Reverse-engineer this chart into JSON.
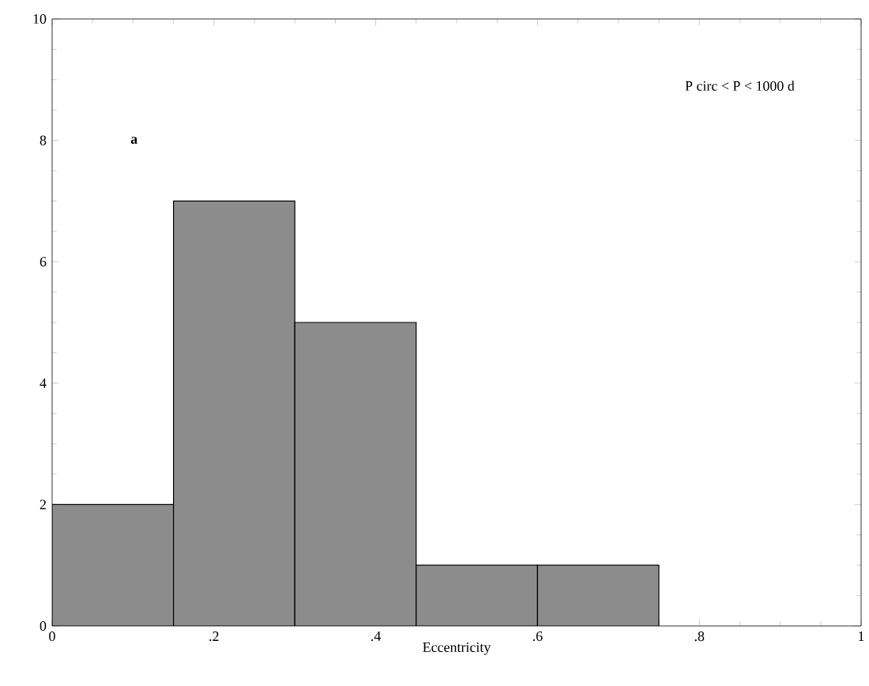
{
  "chart_data": {
    "type": "histogram",
    "xlabel": "Eccentricity",
    "annotations": [
      "a",
      "P circ < P < 1000 d"
    ],
    "bins": [
      0,
      0.15,
      0.3,
      0.45,
      0.6,
      0.75
    ],
    "values": [
      2,
      7,
      5,
      1,
      1
    ],
    "color": "#8c8c8c",
    "xlim": [
      0,
      1
    ],
    "ylim": [
      0,
      10
    ],
    "xticks": [
      0,
      {
        "value": 0.2,
        "label": ".2"
      },
      {
        "value": 0.4,
        "label": ".4"
      },
      {
        "value": 0.6,
        "label": ".6"
      },
      {
        "value": 0.8,
        "label": ".8"
      },
      1
    ],
    "yticks": [
      0,
      2,
      4,
      6,
      8,
      10
    ]
  }
}
